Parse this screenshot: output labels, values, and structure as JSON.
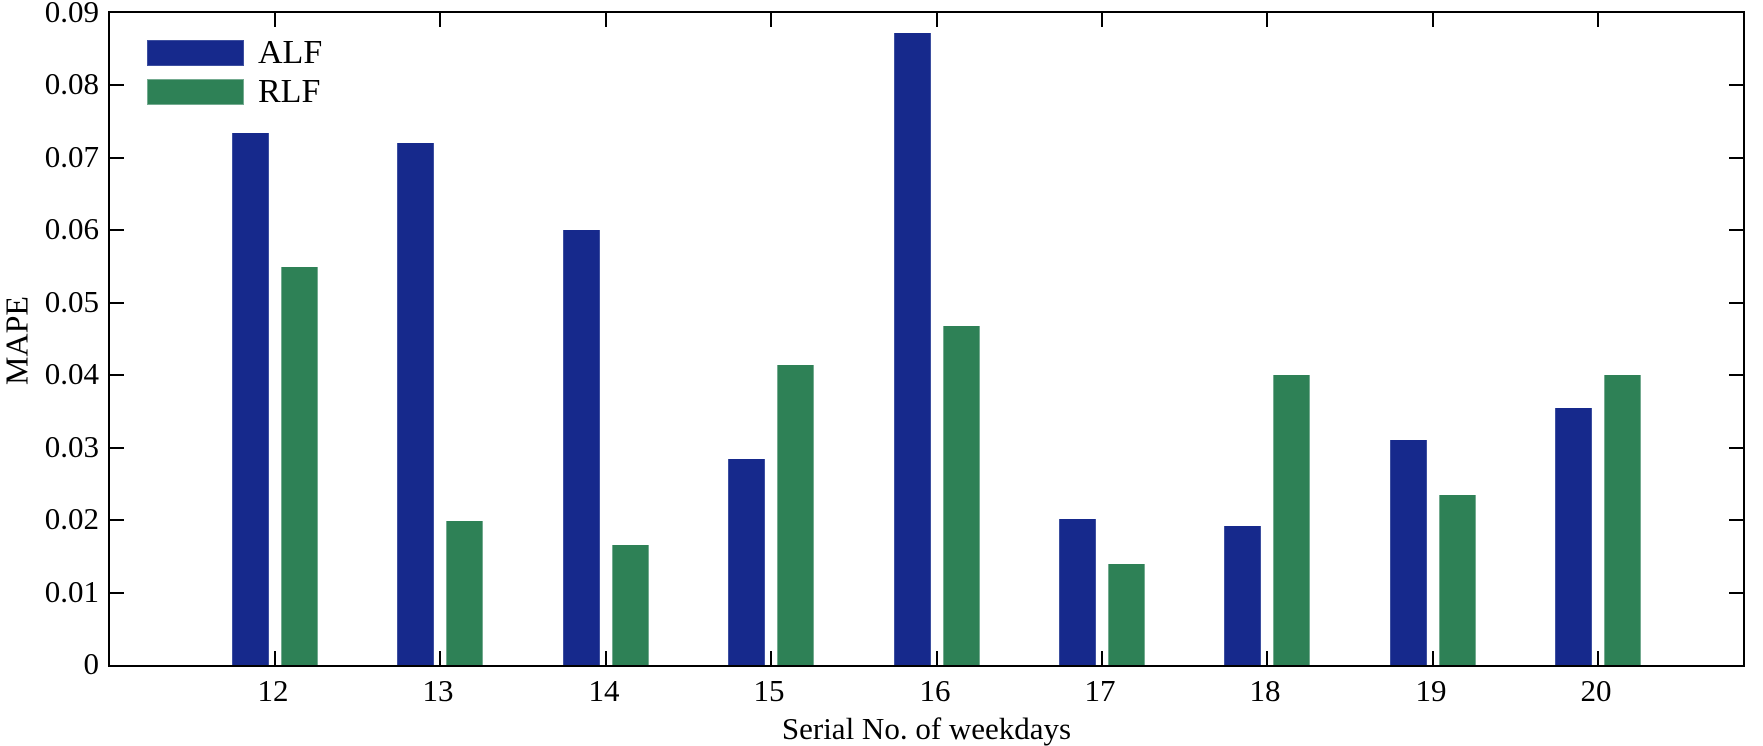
{
  "chart_data": {
    "type": "bar",
    "title": "",
    "xlabel": "Serial No. of weekdays",
    "ylabel": "MAPE",
    "categories": [
      "12",
      "13",
      "14",
      "15",
      "16",
      "17",
      "18",
      "19",
      "20"
    ],
    "series": [
      {
        "name": "ALF",
        "color": "#16298c",
        "edge_color": "#3d4fa0",
        "values": [
          0.0735,
          0.072,
          0.06,
          0.0285,
          0.0873,
          0.0201,
          0.0192,
          0.0311,
          0.0355
        ]
      },
      {
        "name": "RLF",
        "color": "#2e8156",
        "edge_color": "#74ab90",
        "values": [
          0.055,
          0.0199,
          0.0165,
          0.0414,
          0.0468,
          0.0139,
          0.04,
          0.0234,
          0.04
        ]
      }
    ],
    "ylim": [
      0,
      0.09
    ],
    "yticks": [
      0,
      0.01,
      0.02,
      0.03,
      0.04,
      0.05,
      0.06,
      0.07,
      0.08,
      0.09
    ],
    "ytick_labels": [
      "0",
      "0.01",
      "0.02",
      "0.03",
      "0.04",
      "0.05",
      "0.06",
      "0.07",
      "0.08",
      "0.09"
    ],
    "legend_position": "top-left",
    "grid": false,
    "frame": "box with inward ticks",
    "background_color": "#ffffff",
    "axis_color": "#000000"
  }
}
